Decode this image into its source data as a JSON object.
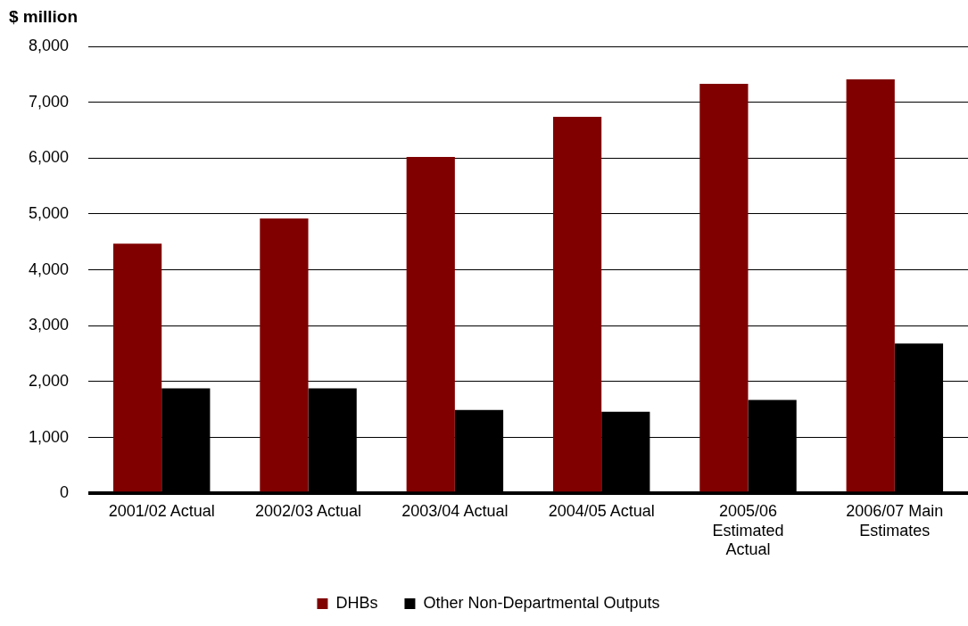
{
  "chart_data": {
    "type": "bar",
    "ylabel": "$ million",
    "categories": [
      "2001/02 Actual",
      "2002/03 Actual",
      "2003/04 Actual",
      "2004/05 Actual",
      "2005/06 Estimated Actual",
      "2006/07 Main Estimates"
    ],
    "series": [
      {
        "name": "DHBs",
        "color": "#800000",
        "values": [
          4470,
          4920,
          6020,
          6740,
          7330,
          7410
        ]
      },
      {
        "name": "Other Non-Departmental Outputs",
        "color": "#000000",
        "values": [
          1880,
          1880,
          1490,
          1460,
          1670,
          2680
        ]
      }
    ],
    "ylim": [
      0,
      8000
    ],
    "yticks": [
      0,
      {
        "value": 1000,
        "label": "1,000"
      },
      {
        "value": 2000,
        "label": "2,000"
      },
      {
        "value": 3000,
        "label": "3,000"
      },
      {
        "value": 4000,
        "label": "4,000"
      },
      {
        "value": 5000,
        "label": "5,000"
      },
      {
        "value": 6000,
        "label": "6,000"
      },
      {
        "value": 7000,
        "label": "7,000"
      },
      {
        "value": 8000,
        "label": "8,000"
      }
    ],
    "grid": "y",
    "legend": "bottom"
  }
}
